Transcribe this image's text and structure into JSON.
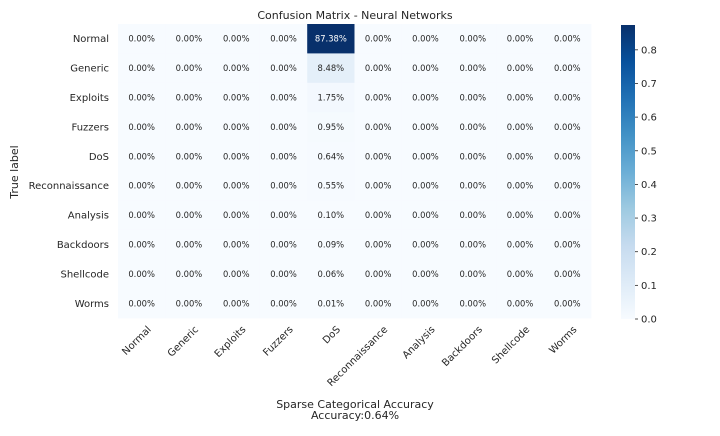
{
  "chart_data": {
    "type": "heatmap",
    "title": "Confusion Matrix - Neural Networks",
    "ylabel": "True label",
    "xlabel_lines": [
      "Sparse Categorical Accuracy",
      "Accuracy:0.64%"
    ],
    "row_labels": [
      "Normal",
      "Generic",
      "Exploits",
      "Fuzzers",
      "DoS",
      "Reconnaissance",
      "Analysis",
      "Backdoors",
      "Shellcode",
      "Worms"
    ],
    "col_labels": [
      "Normal",
      "Generic",
      "Exploits",
      "Fuzzers",
      "DoS",
      "Reconnaissance",
      "Analysis",
      "Backdoors",
      "Shellcode",
      "Worms"
    ],
    "values": [
      [
        0,
        0,
        0,
        0,
        0.8738,
        0,
        0,
        0,
        0,
        0
      ],
      [
        0,
        0,
        0,
        0,
        0.0848,
        0,
        0,
        0,
        0,
        0
      ],
      [
        0,
        0,
        0,
        0,
        0.0175,
        0,
        0,
        0,
        0,
        0
      ],
      [
        0,
        0,
        0,
        0,
        0.0095,
        0,
        0,
        0,
        0,
        0
      ],
      [
        0,
        0,
        0,
        0,
        0.0064,
        0,
        0,
        0,
        0,
        0
      ],
      [
        0,
        0,
        0,
        0,
        0.0055,
        0,
        0,
        0,
        0,
        0
      ],
      [
        0,
        0,
        0,
        0,
        0.001,
        0,
        0,
        0,
        0,
        0
      ],
      [
        0,
        0,
        0,
        0,
        0.0009,
        0,
        0,
        0,
        0,
        0
      ],
      [
        0,
        0,
        0,
        0,
        0.0006,
        0,
        0,
        0,
        0,
        0
      ],
      [
        0,
        0,
        0,
        0,
        0.0001,
        0,
        0,
        0,
        0,
        0
      ]
    ],
    "cell_labels": [
      [
        "0.00%",
        "0.00%",
        "0.00%",
        "0.00%",
        "87.38%",
        "0.00%",
        "0.00%",
        "0.00%",
        "0.00%",
        "0.00%"
      ],
      [
        "0.00%",
        "0.00%",
        "0.00%",
        "0.00%",
        "8.48%",
        "0.00%",
        "0.00%",
        "0.00%",
        "0.00%",
        "0.00%"
      ],
      [
        "0.00%",
        "0.00%",
        "0.00%",
        "0.00%",
        "1.75%",
        "0.00%",
        "0.00%",
        "0.00%",
        "0.00%",
        "0.00%"
      ],
      [
        "0.00%",
        "0.00%",
        "0.00%",
        "0.00%",
        "0.95%",
        "0.00%",
        "0.00%",
        "0.00%",
        "0.00%",
        "0.00%"
      ],
      [
        "0.00%",
        "0.00%",
        "0.00%",
        "0.00%",
        "0.64%",
        "0.00%",
        "0.00%",
        "0.00%",
        "0.00%",
        "0.00%"
      ],
      [
        "0.00%",
        "0.00%",
        "0.00%",
        "0.00%",
        "0.55%",
        "0.00%",
        "0.00%",
        "0.00%",
        "0.00%",
        "0.00%"
      ],
      [
        "0.00%",
        "0.00%",
        "0.00%",
        "0.00%",
        "0.10%",
        "0.00%",
        "0.00%",
        "0.00%",
        "0.00%",
        "0.00%"
      ],
      [
        "0.00%",
        "0.00%",
        "0.00%",
        "0.00%",
        "0.09%",
        "0.00%",
        "0.00%",
        "0.00%",
        "0.00%",
        "0.00%"
      ],
      [
        "0.00%",
        "0.00%",
        "0.00%",
        "0.00%",
        "0.06%",
        "0.00%",
        "0.00%",
        "0.00%",
        "0.00%",
        "0.00%"
      ],
      [
        "0.00%",
        "0.00%",
        "0.00%",
        "0.00%",
        "0.01%",
        "0.00%",
        "0.00%",
        "0.00%",
        "0.00%",
        "0.00%"
      ]
    ],
    "colorbar": {
      "colormap": "Blues",
      "range": [
        0,
        0.8738
      ],
      "ticks": [
        0.0,
        0.1,
        0.2,
        0.3,
        0.4,
        0.5,
        0.6,
        0.7,
        0.8
      ],
      "tick_labels": [
        "0.0",
        "0.1",
        "0.2",
        "0.3",
        "0.4",
        "0.5",
        "0.6",
        "0.7",
        "0.8"
      ],
      "position": "right"
    },
    "grid": false
  }
}
